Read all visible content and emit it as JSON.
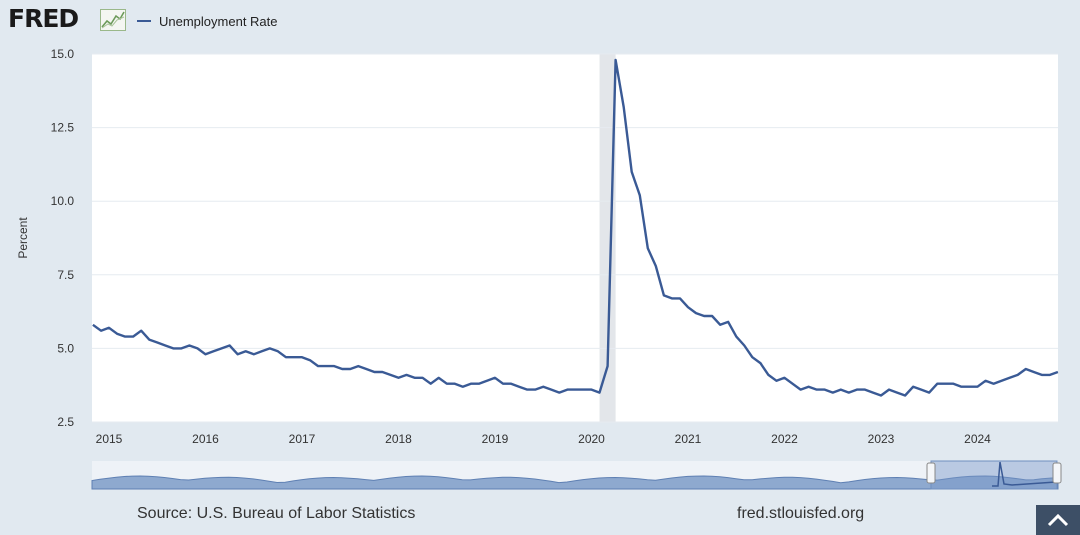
{
  "logo": {
    "text": "FRED"
  },
  "legend": {
    "label": "Unemployment Rate",
    "color": "#3a5a95"
  },
  "footer": {
    "source": "Source: U.S. Bureau of Labor Statistics",
    "site": "fred.stlouisfed.org"
  },
  "chart_data": {
    "type": "line",
    "ylabel": "Percent",
    "ylim": [
      2.5,
      15.0
    ],
    "yticks": [
      "2.5",
      "5.0",
      "7.5",
      "10.0",
      "12.5",
      "15.0"
    ],
    "xticks": [
      "2015",
      "2016",
      "2017",
      "2018",
      "2019",
      "2020",
      "2021",
      "2022",
      "2023",
      "2024"
    ],
    "grid": true,
    "recession_shading": {
      "start": "2020-02",
      "end": "2020-04"
    },
    "series": [
      {
        "name": "Unemployment Rate",
        "color": "#3a5a95",
        "x": [
          "2014-11",
          "2014-12",
          "2015-01",
          "2015-02",
          "2015-03",
          "2015-04",
          "2015-05",
          "2015-06",
          "2015-07",
          "2015-08",
          "2015-09",
          "2015-10",
          "2015-11",
          "2015-12",
          "2016-01",
          "2016-02",
          "2016-03",
          "2016-04",
          "2016-05",
          "2016-06",
          "2016-07",
          "2016-08",
          "2016-09",
          "2016-10",
          "2016-11",
          "2016-12",
          "2017-01",
          "2017-02",
          "2017-03",
          "2017-04",
          "2017-05",
          "2017-06",
          "2017-07",
          "2017-08",
          "2017-09",
          "2017-10",
          "2017-11",
          "2017-12",
          "2018-01",
          "2018-02",
          "2018-03",
          "2018-04",
          "2018-05",
          "2018-06",
          "2018-07",
          "2018-08",
          "2018-09",
          "2018-10",
          "2018-11",
          "2018-12",
          "2019-01",
          "2019-02",
          "2019-03",
          "2019-04",
          "2019-05",
          "2019-06",
          "2019-07",
          "2019-08",
          "2019-09",
          "2019-10",
          "2019-11",
          "2019-12",
          "2020-01",
          "2020-02",
          "2020-03",
          "2020-04",
          "2020-05",
          "2020-06",
          "2020-07",
          "2020-08",
          "2020-09",
          "2020-10",
          "2020-11",
          "2020-12",
          "2021-01",
          "2021-02",
          "2021-03",
          "2021-04",
          "2021-05",
          "2021-06",
          "2021-07",
          "2021-08",
          "2021-09",
          "2021-10",
          "2021-11",
          "2021-12",
          "2022-01",
          "2022-02",
          "2022-03",
          "2022-04",
          "2022-05",
          "2022-06",
          "2022-07",
          "2022-08",
          "2022-09",
          "2022-10",
          "2022-11",
          "2022-12",
          "2023-01",
          "2023-02",
          "2023-03",
          "2023-04",
          "2023-05",
          "2023-06",
          "2023-07",
          "2023-08",
          "2023-09",
          "2023-10",
          "2023-11",
          "2023-12",
          "2024-01",
          "2024-02",
          "2024-03",
          "2024-04",
          "2024-05",
          "2024-06",
          "2024-07",
          "2024-08",
          "2024-09",
          "2024-10",
          "2024-11"
        ],
        "values": [
          5.8,
          5.6,
          5.7,
          5.5,
          5.4,
          5.4,
          5.6,
          5.3,
          5.2,
          5.1,
          5.0,
          5.0,
          5.1,
          5.0,
          4.8,
          4.9,
          5.0,
          5.1,
          4.8,
          4.9,
          4.8,
          4.9,
          5.0,
          4.9,
          4.7,
          4.7,
          4.7,
          4.6,
          4.4,
          4.4,
          4.4,
          4.3,
          4.3,
          4.4,
          4.3,
          4.2,
          4.2,
          4.1,
          4.0,
          4.1,
          4.0,
          4.0,
          3.8,
          4.0,
          3.8,
          3.8,
          3.7,
          3.8,
          3.8,
          3.9,
          4.0,
          3.8,
          3.8,
          3.7,
          3.6,
          3.6,
          3.7,
          3.6,
          3.5,
          3.6,
          3.6,
          3.6,
          3.6,
          3.5,
          4.4,
          14.8,
          13.2,
          11.0,
          10.2,
          8.4,
          7.8,
          6.8,
          6.7,
          6.7,
          6.4,
          6.2,
          6.1,
          6.1,
          5.8,
          5.9,
          5.4,
          5.1,
          4.7,
          4.5,
          4.1,
          3.9,
          4.0,
          3.8,
          3.6,
          3.7,
          3.6,
          3.6,
          3.5,
          3.6,
          3.5,
          3.6,
          3.6,
          3.5,
          3.4,
          3.6,
          3.5,
          3.4,
          3.7,
          3.6,
          3.5,
          3.8,
          3.8,
          3.8,
          3.7,
          3.7,
          3.7,
          3.9,
          3.8,
          3.9,
          4.0,
          4.1,
          4.3,
          4.2,
          4.1,
          4.1,
          4.2
        ]
      }
    ]
  }
}
